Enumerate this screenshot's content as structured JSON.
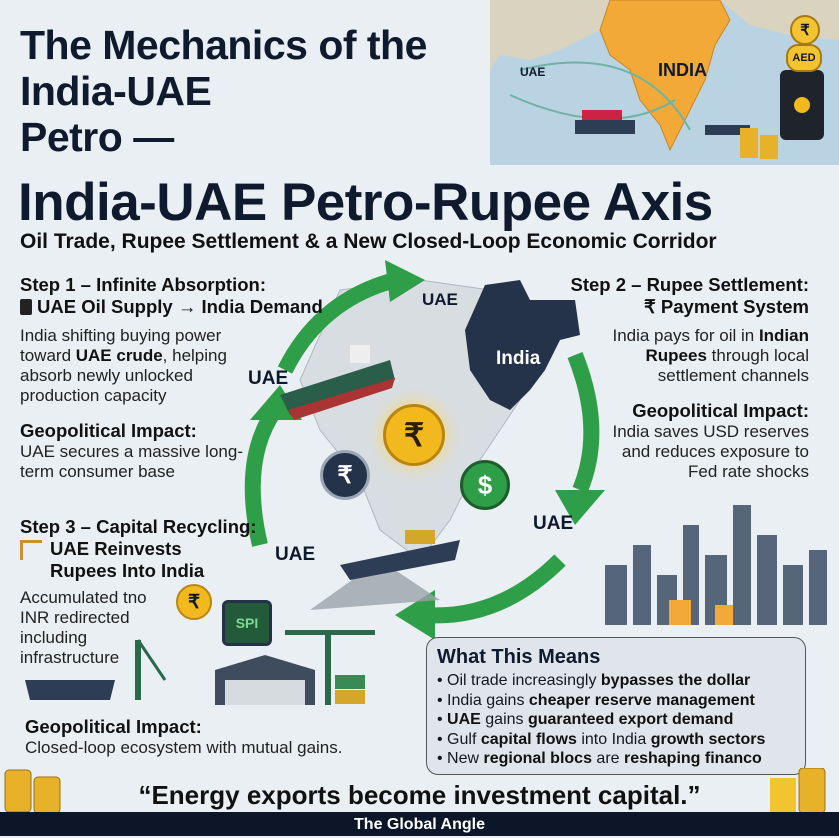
{
  "title_lines": [
    "The Mechanics of the",
    "India-UAE",
    "Petro —"
  ],
  "headline": "India-UAE Petro-Rupee Axis",
  "subtitle": "Oil Trade, Rupee Settlement & a New Closed-Loop Economic Corridor",
  "top_map": {
    "uae_label": "UAE",
    "india_label": "INDIA",
    "rupee_symbol": "₹",
    "aed_label": "AED"
  },
  "step1": {
    "heading": "Step 1 – Infinite Absorption:",
    "subheading": "UAE Oil Supply → India Demand",
    "body": [
      "India shifting buying power toward ",
      "UAE crude",
      ", helping absorb newly unlocked production capacity"
    ],
    "impact_heading": "Geopolitical Impact:",
    "impact_body": "UAE secures a massive long-term consumer base"
  },
  "step2": {
    "heading": "Step 2 – Rupee Settlement:",
    "subheading": "₹ Payment System",
    "body": [
      "India pays for oil in ",
      "Indian Rupees",
      " through local settlement channels"
    ],
    "impact_heading": "Geopolitical Impact:",
    "impact_body": "India saves USD reserves and reduces exposure to Fed rate shocks"
  },
  "step3": {
    "heading": "Step 3 – Capital Recycling:",
    "subheading": "UAE Reinvests Rupees Into India",
    "body": "Accumulated tno INR redirected including infrastructure",
    "chip_label": "SPI",
    "coin_symbol": "₹",
    "impact_heading": "Geopolitical Impact:",
    "impact_body": "Closed-loop ecosystem with mutual gains."
  },
  "diagram": {
    "labels": {
      "uae_top": "UAE",
      "india": "India",
      "uae_left": "UAE",
      "uae_right": "UAE",
      "uae_bottom_left": "UAE"
    },
    "coins": {
      "rupee_gold": "₹",
      "rupee_dark": "₹",
      "dollar": "$"
    },
    "colors": {
      "arrow": "#2e9e48",
      "india_map": "#24324a",
      "gold": "#f2b91e"
    }
  },
  "what_this_means": {
    "heading": "What This Means",
    "items": [
      [
        "Oil trade increasingly ",
        "bypasses the dollar",
        "",
        ""
      ],
      [
        "India gains ",
        "cheaper reserve management",
        "",
        ""
      ],
      [
        "",
        "UAE",
        " gains ",
        "guaranteed export demand"
      ],
      [
        "Gulf ",
        "capital flows",
        " into India ",
        "growth sectors"
      ],
      [
        "New ",
        "regional blocs",
        " are ",
        "reshaping financo"
      ]
    ]
  },
  "quote": "“Energy exports become investment capital.”",
  "footer": "The Global Angle"
}
